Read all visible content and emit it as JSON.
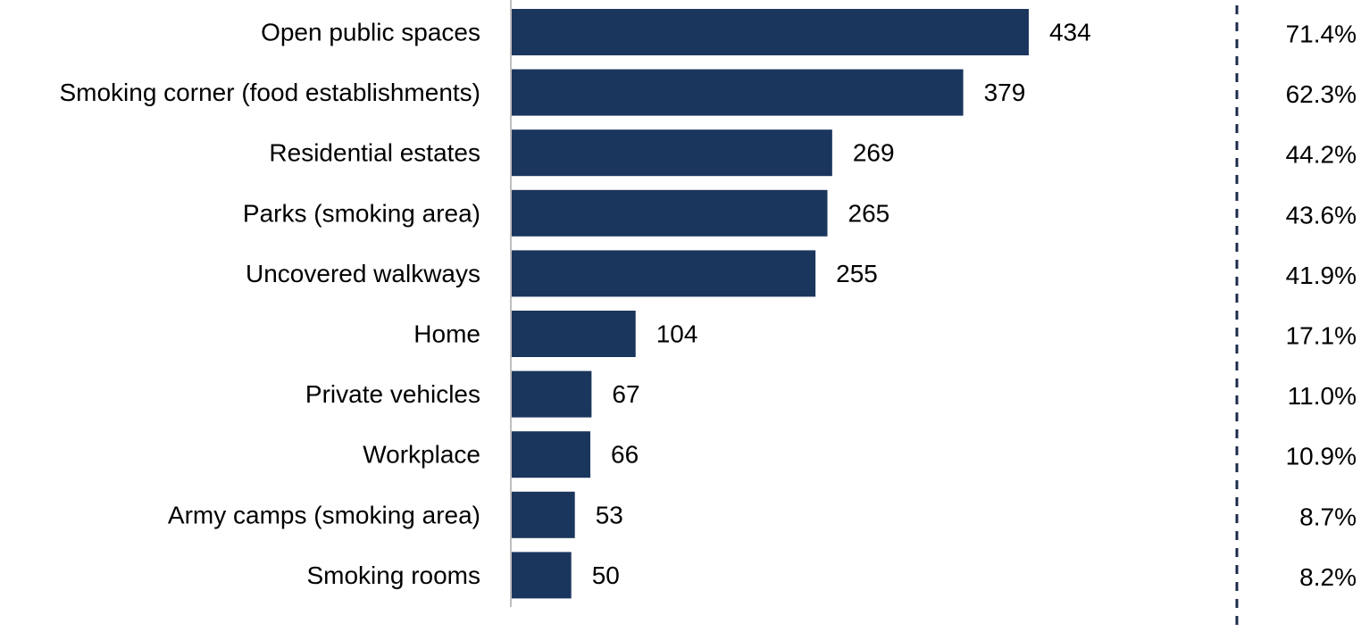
{
  "chart_data": {
    "type": "bar",
    "orientation": "horizontal",
    "title": "",
    "xlabel": "",
    "ylabel": "",
    "grid": false,
    "legend": "none",
    "bar_color": "#1b365d",
    "axis_color": "#bfbfbf",
    "divider_color": "#1b2a4a",
    "categories": [
      "Open public spaces",
      "Smoking corner (food establishments)",
      "Residential estates",
      "Parks (smoking area)",
      "Uncovered walkways",
      "Home",
      "Private vehicles",
      "Workplace",
      "Army camps (smoking area)",
      "Smoking rooms"
    ],
    "values": [
      434,
      379,
      269,
      265,
      255,
      104,
      67,
      66,
      53,
      50
    ],
    "value_labels": [
      "434",
      "379",
      "269",
      "265",
      "255",
      "104",
      "67",
      "66",
      "53",
      "50"
    ],
    "percentages": [
      "71.4%",
      "62.3%",
      "44.2%",
      "43.6%",
      "41.9%",
      "17.1%",
      "11.0%",
      "10.9%",
      "8.7%",
      "8.2%"
    ],
    "xlim": [
      0,
      500
    ]
  }
}
